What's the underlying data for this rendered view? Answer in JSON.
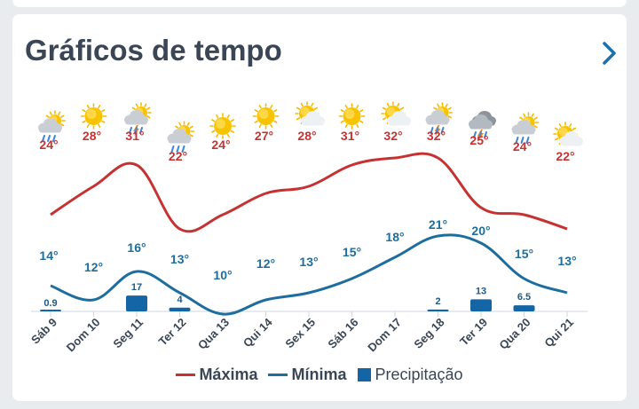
{
  "header": {
    "title": "Gráficos de tempo",
    "chevron_icon": "chevron-right-icon"
  },
  "colors": {
    "max": "#c63232",
    "min": "#1d6e9e",
    "precip": "#1465a6",
    "title": "#3a4656"
  },
  "chart_data": {
    "type": "line",
    "categories": [
      "Sáb 9",
      "Dom 10",
      "Seg 11",
      "Ter 12",
      "Qua 13",
      "Qui 14",
      "Sex 15",
      "Sáb 16",
      "Dom 17",
      "Seg 18",
      "Ter 19",
      "Qua 20",
      "Qui 21"
    ],
    "icons": [
      "thunderstorm-rain-sun-icon",
      "sun-icon",
      "thunderstorm-sun-icon",
      "rain-sun-icon",
      "sun-icon",
      "sun-icon",
      "partly-cloudy-icon",
      "sun-icon",
      "partly-cloudy-icon",
      "thunderstorm-sun-icon",
      "thunderstorm-cloud-icon",
      "rain-sun-icon",
      "partly-cloudy-icon"
    ],
    "series": [
      {
        "name": "Máxima",
        "type": "line",
        "values": [
          24,
          28,
          31,
          22,
          24,
          27,
          28,
          31,
          32,
          32,
          25,
          24,
          22
        ],
        "labels": [
          "24°",
          "28°",
          "31°",
          "22°",
          "24°",
          "27°",
          "28°",
          "31°",
          "32°",
          "32°",
          "25°",
          "24°",
          "22°"
        ]
      },
      {
        "name": "Mínima",
        "type": "line",
        "values": [
          14,
          12,
          16,
          13,
          10,
          12,
          13,
          15,
          18,
          21,
          20,
          15,
          13
        ],
        "labels": [
          "14°",
          "12°",
          "16°",
          "13°",
          "10°",
          "12°",
          "13°",
          "15°",
          "18°",
          "21°",
          "20°",
          "15°",
          "13°"
        ]
      },
      {
        "name": "Precipitação",
        "type": "bar",
        "values": [
          0.9,
          0,
          17,
          4,
          0,
          0,
          0,
          0,
          0,
          2,
          13,
          6.5,
          0
        ],
        "labels": [
          "0.9",
          "",
          "17",
          "4",
          "",
          "",
          "",
          "",
          "",
          "2",
          "13",
          "6.5",
          ""
        ]
      }
    ]
  },
  "legend": {
    "max_label": "Máxima",
    "min_label": "Mínima",
    "precip_label": "Precipitação"
  }
}
